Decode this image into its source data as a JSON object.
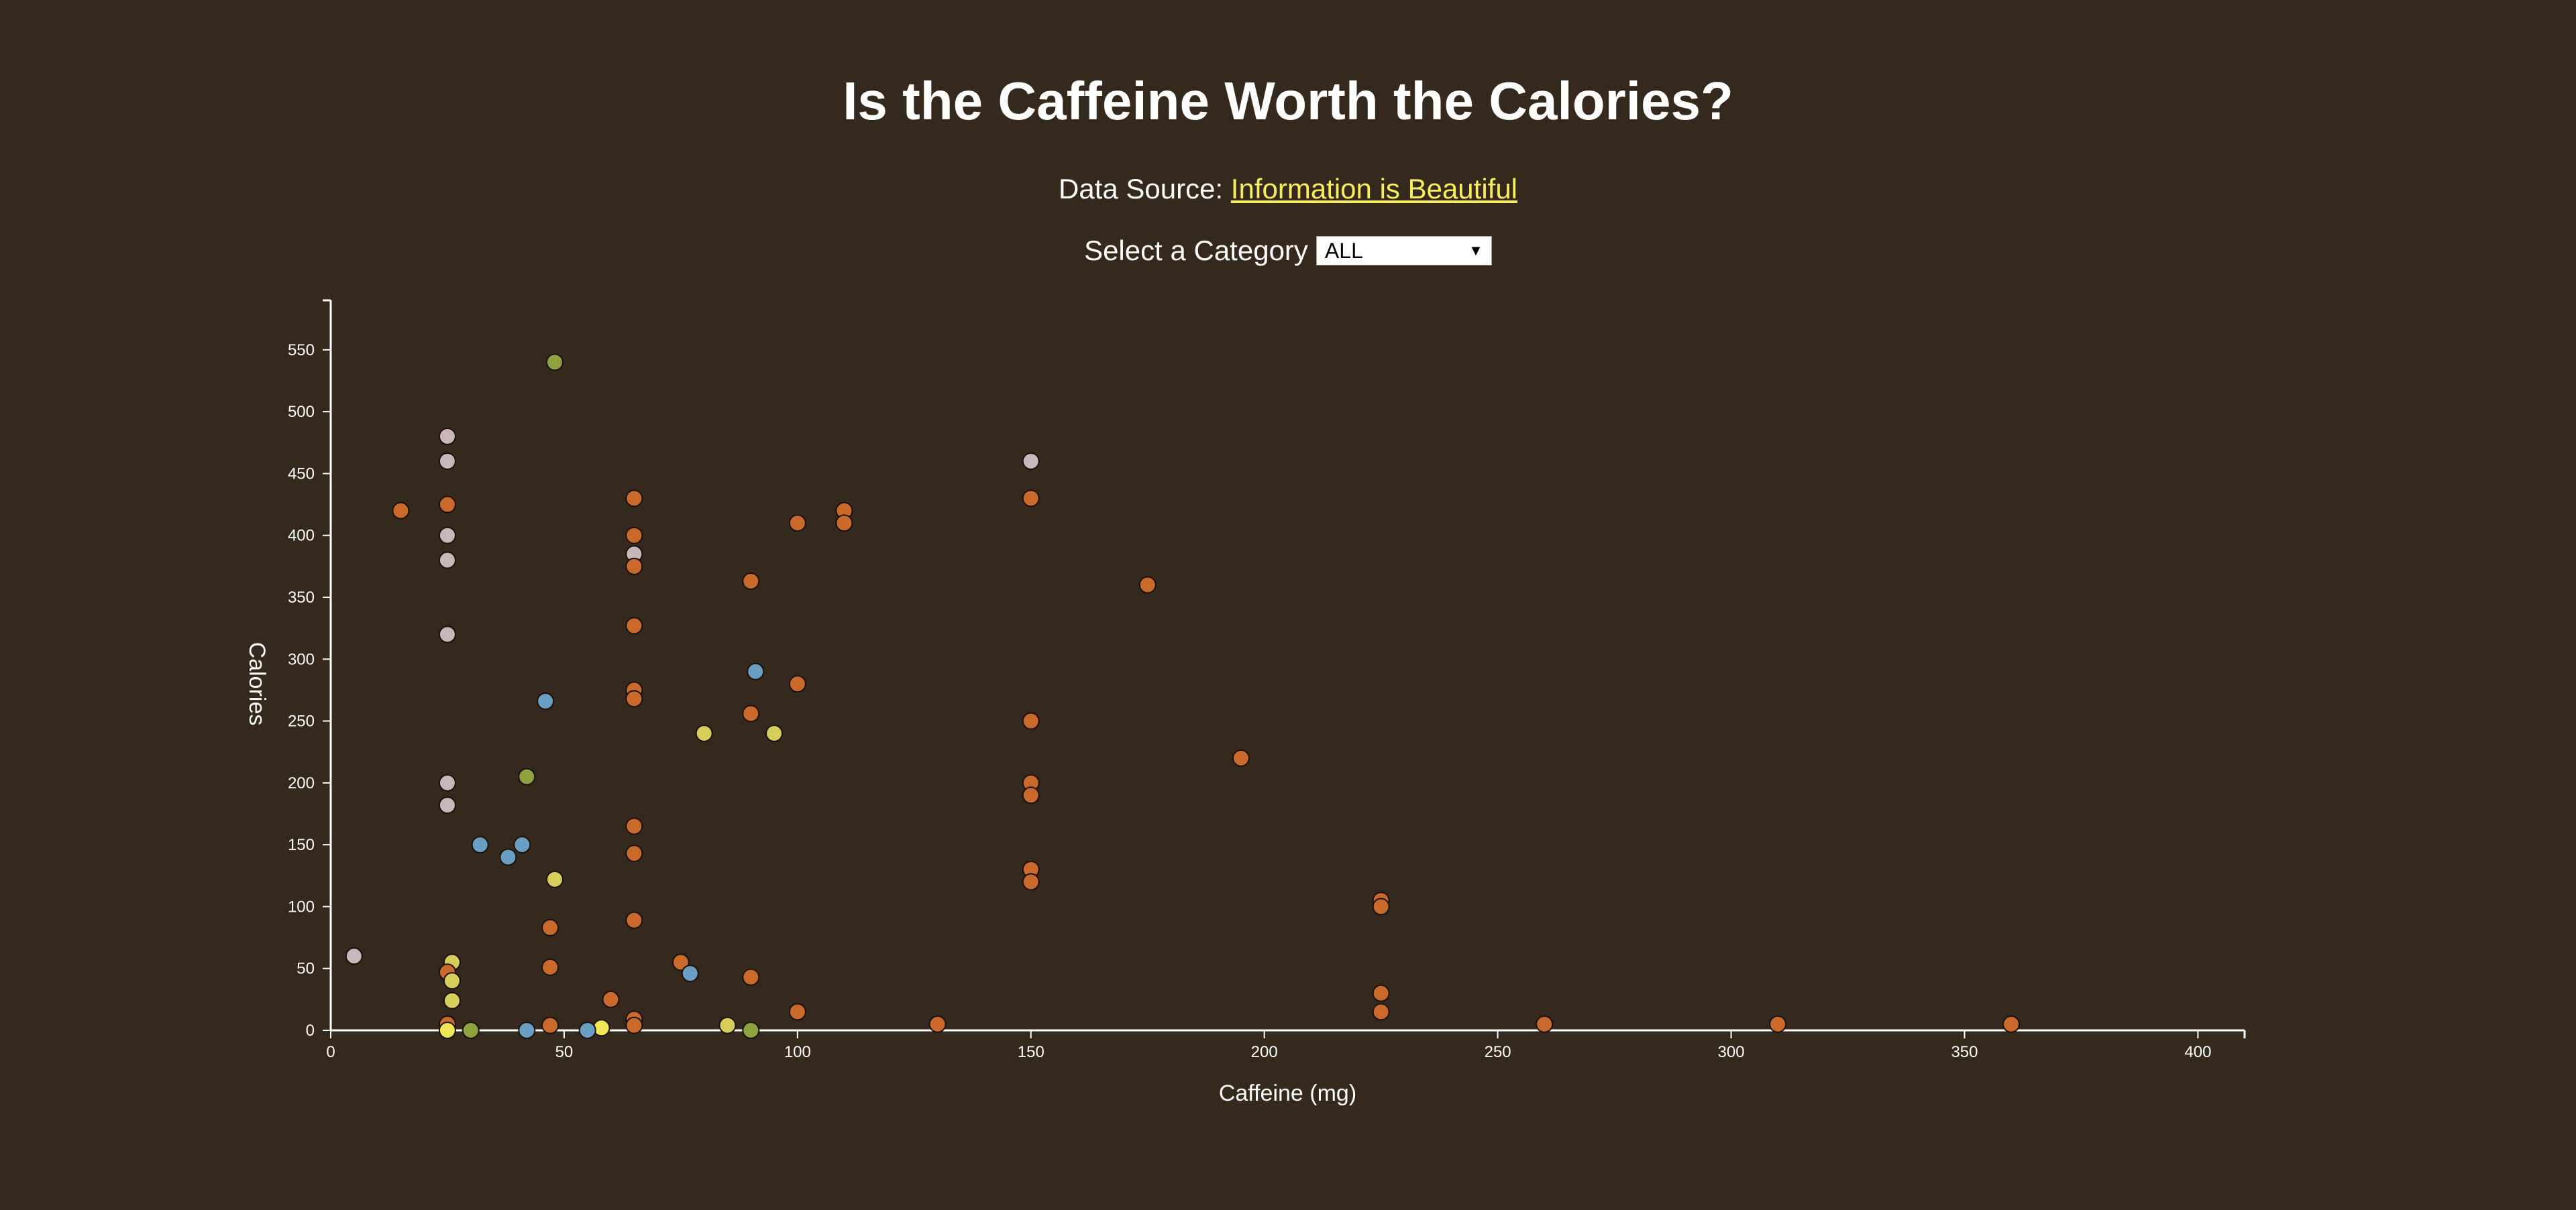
{
  "page": {
    "title": "Is the Caffeine Worth the Calories?",
    "source_prefix": "Data Source:",
    "source_link": "Information is Beautiful",
    "select_label": "Select a Category",
    "select_value": "ALL"
  },
  "colors": {
    "background": "#35281d",
    "link": "#f6ee5c",
    "orange": "#c96a2c",
    "pink": "#c8b6bb",
    "blue": "#6a9ec2",
    "green": "#8fa240",
    "yellow": "#d8cc5a",
    "lightyellow": "#f0e658"
  },
  "chart_data": {
    "type": "scatter",
    "title": "Is the Caffeine Worth the Calories?",
    "xlabel": "Caffeine (mg)",
    "ylabel": "Calories",
    "xlim": [
      0,
      410
    ],
    "ylim": [
      0,
      590
    ],
    "xticks": [
      0,
      50,
      100,
      150,
      200,
      250,
      300,
      350,
      400
    ],
    "yticks": [
      0,
      50,
      100,
      150,
      200,
      250,
      300,
      350,
      400,
      450,
      500,
      550
    ],
    "grid": false,
    "points": [
      {
        "x": 48,
        "y": 540,
        "c": "green"
      },
      {
        "x": 25,
        "y": 480,
        "c": "pink"
      },
      {
        "x": 25,
        "y": 460,
        "c": "pink"
      },
      {
        "x": 150,
        "y": 460,
        "c": "pink"
      },
      {
        "x": 15,
        "y": 420,
        "c": "orange"
      },
      {
        "x": 25,
        "y": 425,
        "c": "orange"
      },
      {
        "x": 25,
        "y": 400,
        "c": "pink"
      },
      {
        "x": 25,
        "y": 380,
        "c": "pink"
      },
      {
        "x": 25,
        "y": 320,
        "c": "pink"
      },
      {
        "x": 25,
        "y": 200,
        "c": "pink"
      },
      {
        "x": 25,
        "y": 182,
        "c": "pink"
      },
      {
        "x": 5,
        "y": 60,
        "c": "pink"
      },
      {
        "x": 65,
        "y": 430,
        "c": "orange"
      },
      {
        "x": 65,
        "y": 400,
        "c": "orange"
      },
      {
        "x": 65,
        "y": 385,
        "c": "pink"
      },
      {
        "x": 65,
        "y": 375,
        "c": "orange"
      },
      {
        "x": 65,
        "y": 327,
        "c": "orange"
      },
      {
        "x": 65,
        "y": 275,
        "c": "orange"
      },
      {
        "x": 65,
        "y": 268,
        "c": "orange"
      },
      {
        "x": 65,
        "y": 165,
        "c": "orange"
      },
      {
        "x": 65,
        "y": 143,
        "c": "orange"
      },
      {
        "x": 65,
        "y": 89,
        "c": "orange"
      },
      {
        "x": 65,
        "y": 9,
        "c": "orange"
      },
      {
        "x": 65,
        "y": 4,
        "c": "orange"
      },
      {
        "x": 150,
        "y": 430,
        "c": "orange"
      },
      {
        "x": 100,
        "y": 410,
        "c": "orange"
      },
      {
        "x": 110,
        "y": 420,
        "c": "orange"
      },
      {
        "x": 110,
        "y": 410,
        "c": "orange"
      },
      {
        "x": 90,
        "y": 363,
        "c": "orange"
      },
      {
        "x": 175,
        "y": 360,
        "c": "orange"
      },
      {
        "x": 91,
        "y": 290,
        "c": "blue"
      },
      {
        "x": 100,
        "y": 280,
        "c": "orange"
      },
      {
        "x": 46,
        "y": 266,
        "c": "blue"
      },
      {
        "x": 90,
        "y": 256,
        "c": "orange"
      },
      {
        "x": 150,
        "y": 250,
        "c": "orange"
      },
      {
        "x": 80,
        "y": 240,
        "c": "yellow"
      },
      {
        "x": 95,
        "y": 240,
        "c": "yellow"
      },
      {
        "x": 195,
        "y": 220,
        "c": "orange"
      },
      {
        "x": 42,
        "y": 205,
        "c": "green"
      },
      {
        "x": 150,
        "y": 200,
        "c": "orange"
      },
      {
        "x": 150,
        "y": 190,
        "c": "orange"
      },
      {
        "x": 32,
        "y": 150,
        "c": "blue"
      },
      {
        "x": 41,
        "y": 150,
        "c": "blue"
      },
      {
        "x": 38,
        "y": 140,
        "c": "blue"
      },
      {
        "x": 150,
        "y": 130,
        "c": "orange"
      },
      {
        "x": 150,
        "y": 120,
        "c": "orange"
      },
      {
        "x": 48,
        "y": 122,
        "c": "yellow"
      },
      {
        "x": 225,
        "y": 105,
        "c": "orange"
      },
      {
        "x": 225,
        "y": 100,
        "c": "orange"
      },
      {
        "x": 47,
        "y": 83,
        "c": "orange"
      },
      {
        "x": 26,
        "y": 55,
        "c": "yellow"
      },
      {
        "x": 25,
        "y": 47,
        "c": "orange"
      },
      {
        "x": 47,
        "y": 51,
        "c": "orange"
      },
      {
        "x": 75,
        "y": 55,
        "c": "orange"
      },
      {
        "x": 77,
        "y": 46,
        "c": "blue"
      },
      {
        "x": 90,
        "y": 43,
        "c": "orange"
      },
      {
        "x": 26,
        "y": 40,
        "c": "yellow"
      },
      {
        "x": 26,
        "y": 24,
        "c": "yellow"
      },
      {
        "x": 60,
        "y": 25,
        "c": "orange"
      },
      {
        "x": 225,
        "y": 30,
        "c": "orange"
      },
      {
        "x": 225,
        "y": 15,
        "c": "orange"
      },
      {
        "x": 100,
        "y": 15,
        "c": "orange"
      },
      {
        "x": 25,
        "y": 5,
        "c": "orange"
      },
      {
        "x": 47,
        "y": 4,
        "c": "orange"
      },
      {
        "x": 130,
        "y": 5,
        "c": "orange"
      },
      {
        "x": 260,
        "y": 5,
        "c": "orange"
      },
      {
        "x": 310,
        "y": 5,
        "c": "orange"
      },
      {
        "x": 360,
        "y": 5,
        "c": "orange"
      },
      {
        "x": 85,
        "y": 4,
        "c": "yellow"
      },
      {
        "x": 58,
        "y": 2,
        "c": "lightyellow"
      },
      {
        "x": 25,
        "y": 0,
        "c": "lightyellow"
      },
      {
        "x": 30,
        "y": 0,
        "c": "green"
      },
      {
        "x": 42,
        "y": 0,
        "c": "blue"
      },
      {
        "x": 55,
        "y": 0,
        "c": "blue"
      },
      {
        "x": 90,
        "y": 0,
        "c": "green"
      }
    ]
  }
}
